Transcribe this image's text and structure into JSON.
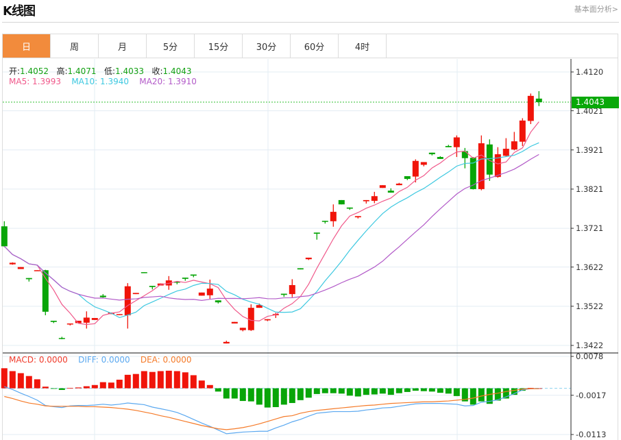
{
  "header": {
    "title": "K线图",
    "fundamental_link": "基本面分析>"
  },
  "tabs": [
    {
      "label": "日",
      "active": true
    },
    {
      "label": "周",
      "active": false
    },
    {
      "label": "月",
      "active": false
    },
    {
      "label": "5分",
      "active": false
    },
    {
      "label": "15分",
      "active": false
    },
    {
      "label": "30分",
      "active": false
    },
    {
      "label": "60分",
      "active": false
    },
    {
      "label": "4时",
      "active": false
    }
  ],
  "ohlc_info": {
    "open_label": "开:",
    "open": "1.4052",
    "high_label": "高:",
    "high": "1.4071",
    "low_label": "低:",
    "low": "1.4033",
    "close_label": "收:",
    "close": "1.4043"
  },
  "ma_info": {
    "ma5": "MA5: 1.3993",
    "ma10": "MA10: 1.3940",
    "ma20": "MA20: 1.3910"
  },
  "macd_info": {
    "macd": "MACD: 0.0000",
    "diff": "DIFF: 0.0000",
    "dea": "DEA: 0.0000"
  },
  "last_price_tag": "1.4043",
  "colors": {
    "up": "#f0140a",
    "down": "#08a508",
    "ma5": "#f0588a",
    "ma10": "#3cc8e0",
    "ma20": "#b25ac8",
    "diff": "#5aa8f0",
    "dea": "#f57a28",
    "tab_active": "#f28b3c"
  },
  "chart_data": [
    {
      "type": "candlestick",
      "title": "K线图 (日)",
      "yaxis_ticks": [
        "1.4120",
        "1.4021",
        "1.3921",
        "1.3821",
        "1.3721",
        "1.3622",
        "1.3522",
        "1.3422"
      ],
      "ylim": [
        1.3422,
        1.412
      ],
      "grid": true,
      "candles": [
        [
          1.3726,
          1.3739,
          1.3673,
          1.3675
        ],
        [
          1.3629,
          1.3634,
          1.3628,
          1.3633
        ],
        [
          1.3617,
          1.3622,
          1.3617,
          1.3622
        ],
        [
          1.3594,
          1.3594,
          1.3585,
          1.3591
        ],
        [
          1.3612,
          1.3614,
          1.3612,
          1.3614
        ],
        [
          1.3614,
          1.3615,
          1.3499,
          1.3508
        ],
        [
          1.3485,
          1.3485,
          1.3479,
          1.3482
        ],
        [
          1.3441,
          1.3444,
          1.3438,
          1.3439
        ],
        [
          1.3476,
          1.3478,
          1.3473,
          1.3478
        ],
        [
          1.3479,
          1.3485,
          1.3479,
          1.3485
        ],
        [
          1.348,
          1.3509,
          1.3465,
          1.3493
        ],
        [
          1.3487,
          1.3492,
          1.3487,
          1.3492
        ],
        [
          1.3549,
          1.3553,
          1.3544,
          1.3545
        ],
        [
          1.3502,
          1.3506,
          1.3502,
          1.3506
        ],
        [
          1.35,
          1.3502,
          1.35,
          1.3502
        ],
        [
          1.3499,
          1.3581,
          1.3465,
          1.3573
        ],
        [
          1.3553,
          1.3556,
          1.3553,
          1.3556
        ],
        [
          1.3609,
          1.3609,
          1.3607,
          1.3607
        ],
        [
          1.3574,
          1.3574,
          1.3565,
          1.3571
        ],
        [
          1.3575,
          1.358,
          1.3575,
          1.358
        ],
        [
          1.3575,
          1.3599,
          1.3564,
          1.3588
        ],
        [
          1.3585,
          1.3585,
          1.3578,
          1.3582
        ],
        [
          1.3595,
          1.3595,
          1.3587,
          1.3592
        ],
        [
          1.3603,
          1.3603,
          1.3596,
          1.36
        ],
        [
          1.3549,
          1.3557,
          1.3549,
          1.3557
        ],
        [
          1.355,
          1.359,
          1.3541,
          1.3567
        ],
        [
          1.3537,
          1.3537,
          1.3529,
          1.3532
        ],
        [
          1.3427,
          1.3434,
          1.3427,
          1.3431
        ],
        [
          1.3478,
          1.3482,
          1.3478,
          1.3482
        ],
        [
          1.3461,
          1.3467,
          1.3458,
          1.3467
        ],
        [
          1.3461,
          1.3527,
          1.3459,
          1.3518
        ],
        [
          1.3518,
          1.3529,
          1.3518,
          1.3525
        ],
        [
          1.3486,
          1.3489,
          1.3484,
          1.3489
        ],
        [
          1.3499,
          1.3505,
          1.3492,
          1.3502
        ],
        [
          1.3554,
          1.3554,
          1.3546,
          1.3551
        ],
        [
          1.3553,
          1.3591,
          1.3545,
          1.3576
        ],
        [
          1.3619,
          1.3619,
          1.3616,
          1.3616
        ],
        [
          1.3642,
          1.3646,
          1.364,
          1.3646
        ],
        [
          1.371,
          1.371,
          1.3692,
          1.3707
        ],
        [
          1.374,
          1.374,
          1.3733,
          1.3738
        ],
        [
          1.3739,
          1.3782,
          1.3725,
          1.3763
        ],
        [
          1.3793,
          1.3793,
          1.3782,
          1.3782
        ],
        [
          1.3774,
          1.3774,
          1.3768,
          1.3771
        ],
        [
          1.3749,
          1.3752,
          1.3746,
          1.3752
        ],
        [
          1.379,
          1.3793,
          1.3784,
          1.3793
        ],
        [
          1.3791,
          1.3814,
          1.3785,
          1.3803
        ],
        [
          1.3824,
          1.3831,
          1.3824,
          1.3831
        ],
        [
          1.3817,
          1.3823,
          1.3812,
          1.3812
        ],
        [
          1.3831,
          1.3837,
          1.3831,
          1.3835
        ],
        [
          1.3854,
          1.3854,
          1.3844,
          1.3847
        ],
        [
          1.3853,
          1.3897,
          1.3838,
          1.3893
        ],
        [
          1.3883,
          1.389,
          1.3879,
          1.389
        ],
        [
          1.3914,
          1.3914,
          1.3907,
          1.391
        ],
        [
          1.3903,
          1.3905,
          1.3898,
          1.3898
        ],
        [
          1.3931,
          1.3934,
          1.3928,
          1.3928
        ],
        [
          1.3928,
          1.3958,
          1.3903,
          1.3953
        ],
        [
          1.3918,
          1.3926,
          1.3874,
          1.39
        ],
        [
          1.3901,
          1.3903,
          1.382,
          1.3821
        ],
        [
          1.3821,
          1.3958,
          1.3818,
          1.3938
        ],
        [
          1.3935,
          1.3948,
          1.3842,
          1.3858
        ],
        [
          1.3852,
          1.3928,
          1.385,
          1.391
        ],
        [
          1.3906,
          1.3951,
          1.3904,
          1.3924
        ],
        [
          1.3922,
          1.3967,
          1.392,
          1.3943
        ],
        [
          1.3942,
          1.4002,
          1.3931,
          1.3996
        ],
        [
          1.3995,
          1.4065,
          1.3987,
          1.4059
        ],
        [
          1.4052,
          1.4071,
          1.4033,
          1.4043
        ]
      ],
      "candle_format": "open,high,low,close",
      "ma_periods": [
        5,
        10,
        20
      ],
      "last_close": 1.4043
    },
    {
      "type": "bar+line",
      "title": "MACD",
      "yaxis_ticks": [
        "0.0078",
        "-0.0017",
        "-0.0113"
      ],
      "ylim": [
        -0.0113,
        0.0078
      ],
      "macd": [
        0.0049,
        0.0042,
        0.0037,
        0.003,
        0.0022,
        0.0004,
        -0.0001,
        -0.0004,
        0.0001,
        0.0002,
        0.0005,
        0.0008,
        0.0015,
        0.0014,
        0.0021,
        0.0033,
        0.0035,
        0.0042,
        0.004,
        0.0042,
        0.0043,
        0.0042,
        0.0039,
        0.0032,
        0.0019,
        0.0008,
        -0.0008,
        -0.0025,
        -0.0025,
        -0.0031,
        -0.0032,
        -0.004,
        -0.0047,
        -0.0046,
        -0.004,
        -0.0036,
        -0.0029,
        -0.0023,
        -0.0014,
        -0.0012,
        -0.0012,
        -0.0013,
        -0.0018,
        -0.002,
        -0.0016,
        -0.0015,
        -0.0013,
        -0.0016,
        -0.0012,
        -0.0009,
        -0.0006,
        -0.0007,
        -0.0008,
        -0.0011,
        -0.0013,
        -0.0019,
        -0.0032,
        -0.004,
        -0.0032,
        -0.0038,
        -0.003,
        -0.0025,
        -0.0016,
        -0.0006,
        0.0001,
        0.0
      ],
      "diff": [
        0.0004,
        -0.0003,
        -0.0012,
        -0.002,
        -0.0029,
        -0.0042,
        -0.0045,
        -0.0047,
        -0.0043,
        -0.0042,
        -0.0042,
        -0.0041,
        -0.0039,
        -0.0041,
        -0.0039,
        -0.0036,
        -0.0038,
        -0.004,
        -0.0046,
        -0.005,
        -0.0054,
        -0.0059,
        -0.0067,
        -0.0076,
        -0.0085,
        -0.0093,
        -0.0102,
        -0.0111,
        -0.0109,
        -0.0107,
        -0.0106,
        -0.0105,
        -0.0105,
        -0.0097,
        -0.009,
        -0.0082,
        -0.0076,
        -0.0068,
        -0.0061,
        -0.0059,
        -0.0057,
        -0.0057,
        -0.0057,
        -0.0056,
        -0.0053,
        -0.0051,
        -0.0048,
        -0.0047,
        -0.0044,
        -0.0041,
        -0.0038,
        -0.0037,
        -0.0037,
        -0.0037,
        -0.0038,
        -0.0039,
        -0.0043,
        -0.0042,
        -0.0034,
        -0.0032,
        -0.0028,
        -0.0021,
        -0.0013,
        -0.0004,
        -0.0001,
        0.0
      ],
      "dea": [
        -0.002,
        -0.0025,
        -0.0031,
        -0.0036,
        -0.0039,
        -0.0043,
        -0.0044,
        -0.0044,
        -0.0044,
        -0.0044,
        -0.0045,
        -0.0045,
        -0.0046,
        -0.0047,
        -0.0049,
        -0.0051,
        -0.0054,
        -0.0058,
        -0.0062,
        -0.0067,
        -0.0071,
        -0.0076,
        -0.0081,
        -0.0086,
        -0.0091,
        -0.0095,
        -0.0099,
        -0.0101,
        -0.0099,
        -0.0096,
        -0.0092,
        -0.0087,
        -0.0081,
        -0.0075,
        -0.0069,
        -0.0067,
        -0.0061,
        -0.0057,
        -0.0054,
        -0.0052,
        -0.005,
        -0.0048,
        -0.0046,
        -0.0044,
        -0.0042,
        -0.0041,
        -0.0039,
        -0.0037,
        -0.0036,
        -0.0035,
        -0.0034,
        -0.0033,
        -0.0033,
        -0.0032,
        -0.0031,
        -0.0029,
        -0.0027,
        -0.0024,
        -0.0019,
        -0.0015,
        -0.0012,
        -0.0008,
        -0.0005,
        -0.0002,
        -0.0001,
        -0.0001
      ]
    }
  ]
}
